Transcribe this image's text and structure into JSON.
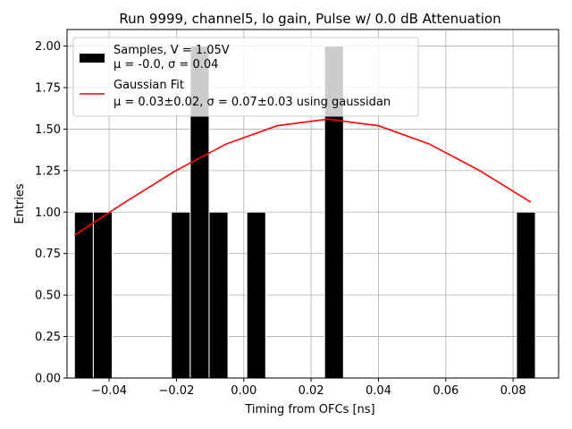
{
  "chart_data": {
    "type": "bar",
    "title": "Run 9999, channel5, lo gain, Pulse w/ 0.0 dB Attenuation",
    "xlabel": "Timing from OFCs [ns]",
    "ylabel": "Entries",
    "xlim": [
      -0.0525,
      0.0935
    ],
    "ylim": [
      0.0,
      2.1
    ],
    "xticks": [
      -0.04,
      -0.02,
      0.0,
      0.02,
      0.04,
      0.06,
      0.08
    ],
    "xtick_labels": [
      "−0.04",
      "−0.02",
      "0.00",
      "0.02",
      "0.04",
      "0.06",
      "0.08"
    ],
    "yticks": [
      0.0,
      0.25,
      0.5,
      0.75,
      1.0,
      1.25,
      1.5,
      1.75,
      2.0
    ],
    "ytick_labels": [
      "0.00",
      "0.25",
      "0.50",
      "0.75",
      "1.00",
      "1.25",
      "1.50",
      "1.75",
      "2.00"
    ],
    "grid": true,
    "legend_position": "top-left",
    "histogram": {
      "name": "Samples, V = 1.05V",
      "stats": "μ = -0.0, σ = 0.04",
      "color": "#000000",
      "edge_color": "#ffffff",
      "bins": [
        {
          "x0": -0.0503,
          "x1": -0.0447,
          "count": 1
        },
        {
          "x0": -0.0447,
          "x1": -0.0391,
          "count": 1
        },
        {
          "x0": -0.0215,
          "x1": -0.0159,
          "count": 1
        },
        {
          "x0": -0.0159,
          "x1": -0.0103,
          "count": 2
        },
        {
          "x0": -0.0103,
          "x1": -0.0047,
          "count": 1
        },
        {
          "x0": 0.0009,
          "x1": 0.0065,
          "count": 1
        },
        {
          "x0": 0.024,
          "x1": 0.0296,
          "count": 2
        },
        {
          "x0": 0.081,
          "x1": 0.0866,
          "count": 1
        }
      ]
    },
    "fit": {
      "name": "Gaussian Fit",
      "stats": "μ = 0.03±0.02, σ = 0.07±0.03 using gaussidan",
      "color": "#ff0000",
      "x": [
        -0.0503,
        -0.0352,
        -0.0202,
        -0.0052,
        0.0099,
        0.0249,
        0.04,
        0.0551,
        0.0701,
        0.0852
      ],
      "y": [
        0.86,
        1.06,
        1.25,
        1.41,
        1.52,
        1.56,
        1.52,
        1.41,
        1.25,
        1.06
      ]
    }
  }
}
